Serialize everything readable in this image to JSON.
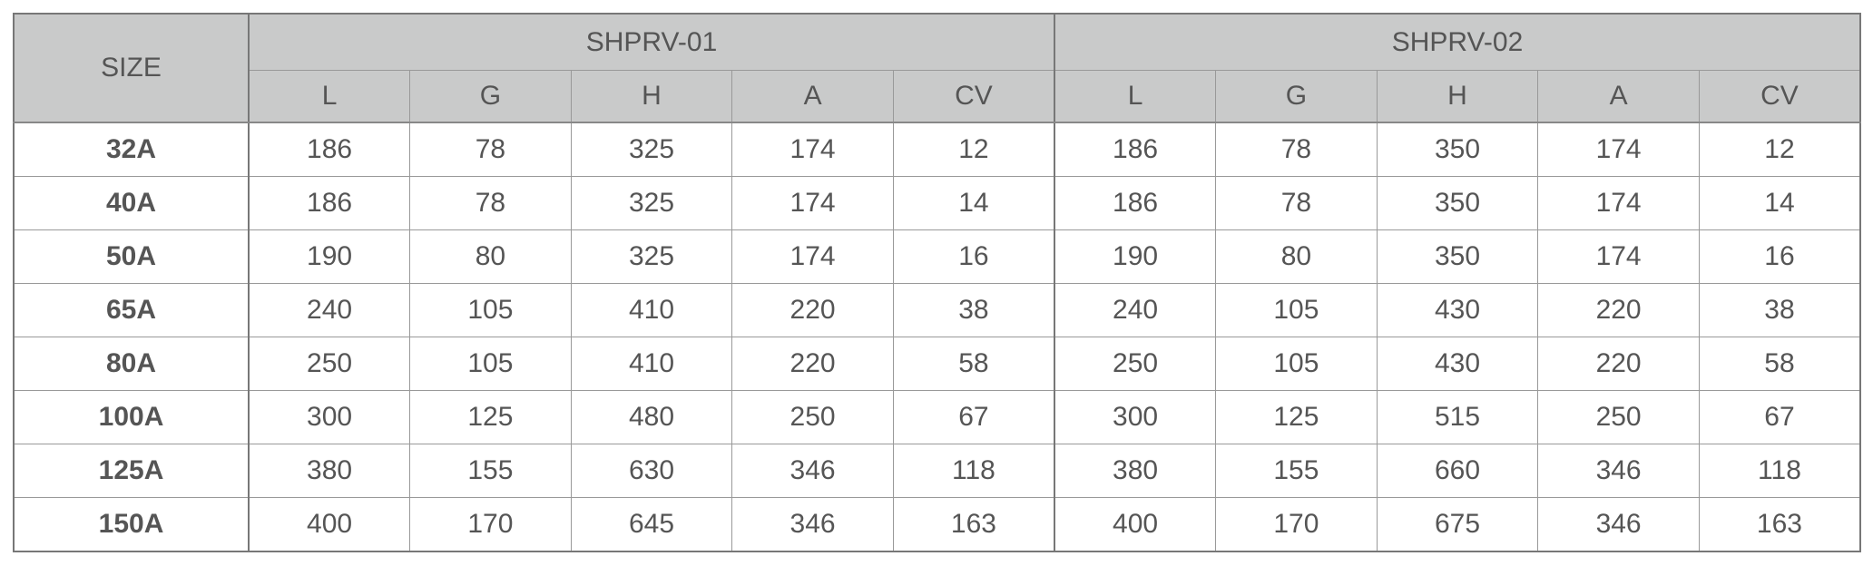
{
  "table": {
    "corner": "SIZE",
    "groups": [
      {
        "name": "SHPRV-01",
        "columns": [
          "L",
          "G",
          "H",
          "A",
          "CV"
        ]
      },
      {
        "name": "SHPRV-02",
        "columns": [
          "L",
          "G",
          "H",
          "A",
          "CV"
        ]
      }
    ],
    "rows": [
      {
        "size": "32A",
        "values": [
          186,
          78,
          325,
          174,
          12,
          186,
          78,
          350,
          174,
          12
        ]
      },
      {
        "size": "40A",
        "values": [
          186,
          78,
          325,
          174,
          14,
          186,
          78,
          350,
          174,
          14
        ]
      },
      {
        "size": "50A",
        "values": [
          190,
          80,
          325,
          174,
          16,
          190,
          80,
          350,
          174,
          16
        ]
      },
      {
        "size": "65A",
        "values": [
          240,
          105,
          410,
          220,
          38,
          240,
          105,
          430,
          220,
          38
        ]
      },
      {
        "size": "80A",
        "values": [
          250,
          105,
          410,
          220,
          58,
          250,
          105,
          430,
          220,
          58
        ]
      },
      {
        "size": "100A",
        "values": [
          300,
          125,
          480,
          250,
          67,
          300,
          125,
          515,
          250,
          67
        ]
      },
      {
        "size": "125A",
        "values": [
          380,
          155,
          630,
          346,
          118,
          380,
          155,
          660,
          346,
          118
        ]
      },
      {
        "size": "150A",
        "values": [
          400,
          170,
          645,
          346,
          163,
          400,
          170,
          675,
          346,
          163
        ]
      }
    ]
  }
}
